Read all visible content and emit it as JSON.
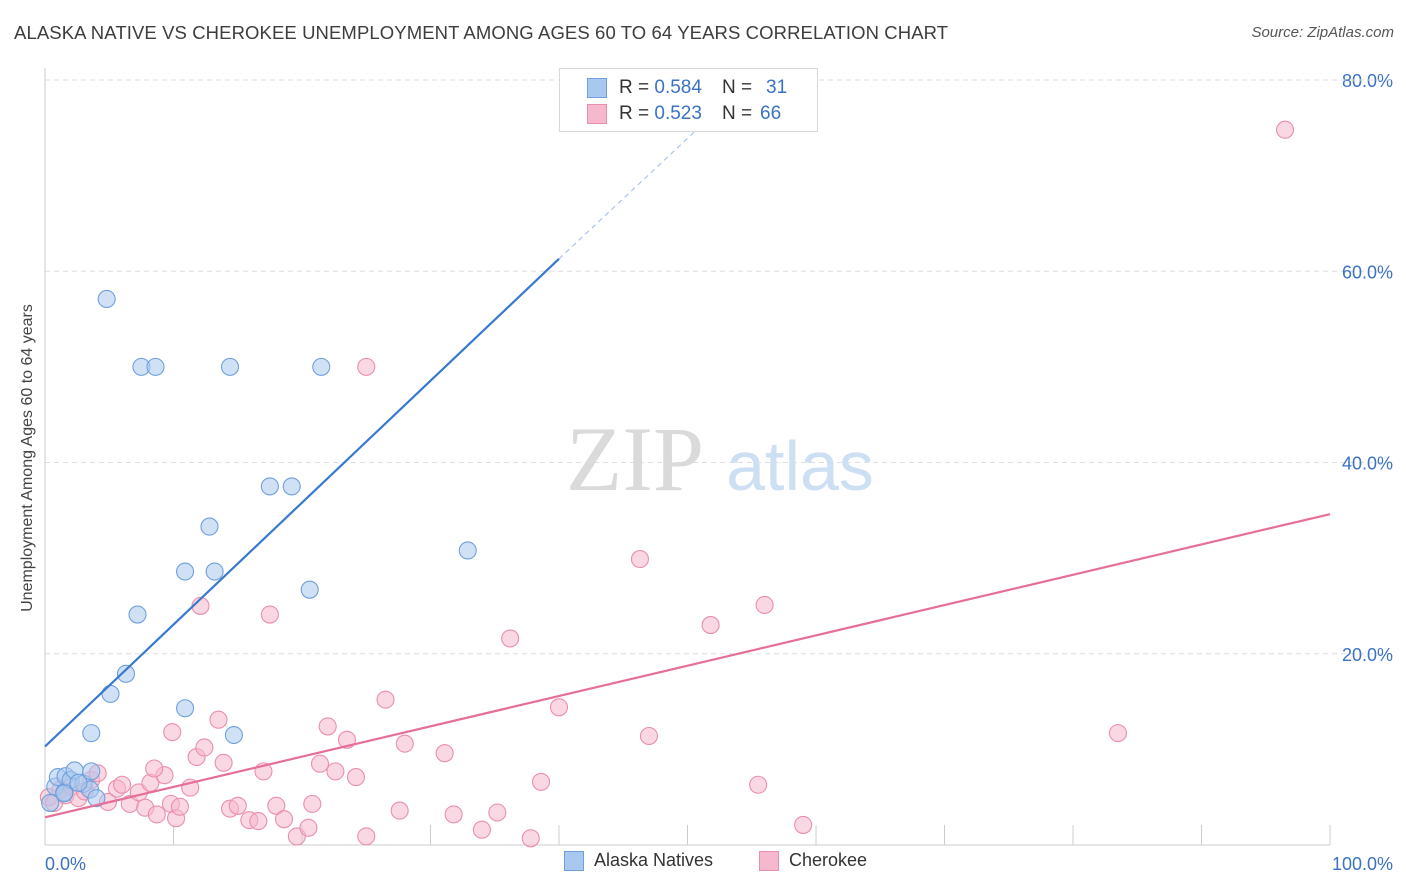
{
  "title": "ALASKA NATIVE VS CHEROKEE UNEMPLOYMENT AMONG AGES 60 TO 64 YEARS CORRELATION CHART",
  "source": "Source: ZipAtlas.com",
  "watermark": {
    "zip": "ZIP",
    "atlas": "atlas"
  },
  "legend": {
    "alaska": {
      "r_label": "R =",
      "r_value": "0.584",
      "n_label": "N =",
      "n_value": "31"
    },
    "cherokee": {
      "r_label": "R =",
      "r_value": "0.523",
      "n_label": "N =",
      "n_value": "66"
    }
  },
  "colors": {
    "alaska_fill": "#a9c8ef",
    "alaska_stroke": "#6f9fdc",
    "alaska_line": "#3878d0",
    "cherokee_fill": "#f6b8cc",
    "cherokee_stroke": "#ea8fab",
    "cherokee_line": "#e56f98",
    "axis_text": "#3a72c4",
    "grid": "#dedede"
  },
  "chart_data": {
    "type": "scatter",
    "title": "ALASKA NATIVE VS CHEROKEE UNEMPLOYMENT AMONG AGES 60 TO 64 YEARS CORRELATION CHART",
    "xlabel": "",
    "ylabel": "Unemployment Among Ages 60 to 64 years",
    "xlim": [
      0,
      100
    ],
    "ylim": [
      0,
      80
    ],
    "x_tick_labels": [
      "0.0%",
      "100.0%"
    ],
    "y_ticks": [
      20,
      40,
      60,
      80
    ],
    "y_tick_labels": [
      "20.0%",
      "40.0%",
      "60.0%",
      "80.0%"
    ],
    "grid": true,
    "legend_position": "top-center",
    "series": [
      {
        "name": "Alaska Natives",
        "r": 0.584,
        "n": 31,
        "points": [
          [
            0.4,
            4.4
          ],
          [
            0.8,
            6.1
          ],
          [
            1.0,
            7.1
          ],
          [
            1.5,
            5.5
          ],
          [
            1.6,
            7.2
          ],
          [
            2.0,
            6.8
          ],
          [
            2.3,
            7.8
          ],
          [
            3.0,
            6.4
          ],
          [
            3.5,
            5.8
          ],
          [
            4.0,
            4.9
          ],
          [
            3.6,
            7.7
          ],
          [
            4.8,
            57.1
          ],
          [
            7.5,
            50.0
          ],
          [
            8.6,
            50.0
          ],
          [
            14.4,
            50.0
          ],
          [
            21.5,
            50.0
          ],
          [
            17.5,
            37.5
          ],
          [
            19.2,
            37.5
          ],
          [
            12.8,
            33.3
          ],
          [
            10.9,
            28.6
          ],
          [
            13.2,
            28.6
          ],
          [
            7.2,
            24.1
          ],
          [
            20.6,
            26.7
          ],
          [
            32.9,
            30.8
          ],
          [
            6.3,
            17.9
          ],
          [
            5.1,
            15.8
          ],
          [
            10.9,
            14.3
          ],
          [
            14.7,
            11.5
          ],
          [
            3.6,
            11.7
          ],
          [
            2.6,
            6.5
          ],
          [
            1.5,
            5.4
          ]
        ],
        "trend": {
          "x0": 0.0,
          "y0": 10.3,
          "x1": 40.0,
          "y1": 61.3,
          "dash_x1": 53.5,
          "dash_y1": 78.3
        }
      },
      {
        "name": "Cherokee",
        "points": [
          [
            0.3,
            5.0
          ],
          [
            0.7,
            4.4
          ],
          [
            1.2,
            5.8
          ],
          [
            1.6,
            5.2
          ],
          [
            2.1,
            6.1
          ],
          [
            2.6,
            4.9
          ],
          [
            3.1,
            5.6
          ],
          [
            3.6,
            6.8
          ],
          [
            4.1,
            7.5
          ],
          [
            4.9,
            4.5
          ],
          [
            5.6,
            5.9
          ],
          [
            6.0,
            6.3
          ],
          [
            6.6,
            4.3
          ],
          [
            7.3,
            5.5
          ],
          [
            7.8,
            3.9
          ],
          [
            8.2,
            6.5
          ],
          [
            8.7,
            3.2
          ],
          [
            9.3,
            7.3
          ],
          [
            9.8,
            4.3
          ],
          [
            10.2,
            2.8
          ],
          [
            10.5,
            4.0
          ],
          [
            11.3,
            6.0
          ],
          [
            11.8,
            9.2
          ],
          [
            12.4,
            10.2
          ],
          [
            13.5,
            13.1
          ],
          [
            13.9,
            8.6
          ],
          [
            14.4,
            3.8
          ],
          [
            15.0,
            4.1
          ],
          [
            15.9,
            2.6
          ],
          [
            16.6,
            2.5
          ],
          [
            17.0,
            7.7
          ],
          [
            18.0,
            4.1
          ],
          [
            18.6,
            2.7
          ],
          [
            19.6,
            0.9
          ],
          [
            20.5,
            1.8
          ],
          [
            20.8,
            4.3
          ],
          [
            21.4,
            8.5
          ],
          [
            22.0,
            12.4
          ],
          [
            22.6,
            7.7
          ],
          [
            23.5,
            11.0
          ],
          [
            24.2,
            7.1
          ],
          [
            25.0,
            0.9
          ],
          [
            26.5,
            15.2
          ],
          [
            27.6,
            3.6
          ],
          [
            28.0,
            10.6
          ],
          [
            31.1,
            9.6
          ],
          [
            31.8,
            3.2
          ],
          [
            34.0,
            1.6
          ],
          [
            35.2,
            3.4
          ],
          [
            36.2,
            21.6
          ],
          [
            37.8,
            0.7
          ],
          [
            38.6,
            6.6
          ],
          [
            40.0,
            14.4
          ],
          [
            46.3,
            29.9
          ],
          [
            47.0,
            11.4
          ],
          [
            51.8,
            23.0
          ],
          [
            55.5,
            6.3
          ],
          [
            56.0,
            25.1
          ],
          [
            59.0,
            2.1
          ],
          [
            83.5,
            11.7
          ],
          [
            96.5,
            74.8
          ],
          [
            25.0,
            50.0
          ],
          [
            9.9,
            11.8
          ],
          [
            12.1,
            25.0
          ],
          [
            17.5,
            24.1
          ],
          [
            8.5,
            8.0
          ]
        ],
        "r": 0.523,
        "n": 66,
        "trend": {
          "x0": 0.0,
          "y0": 2.9,
          "x1": 100.0,
          "y1": 34.6
        }
      }
    ]
  },
  "bottom_legend": {
    "alaska": "Alaska Natives",
    "cherokee": "Cherokee"
  }
}
